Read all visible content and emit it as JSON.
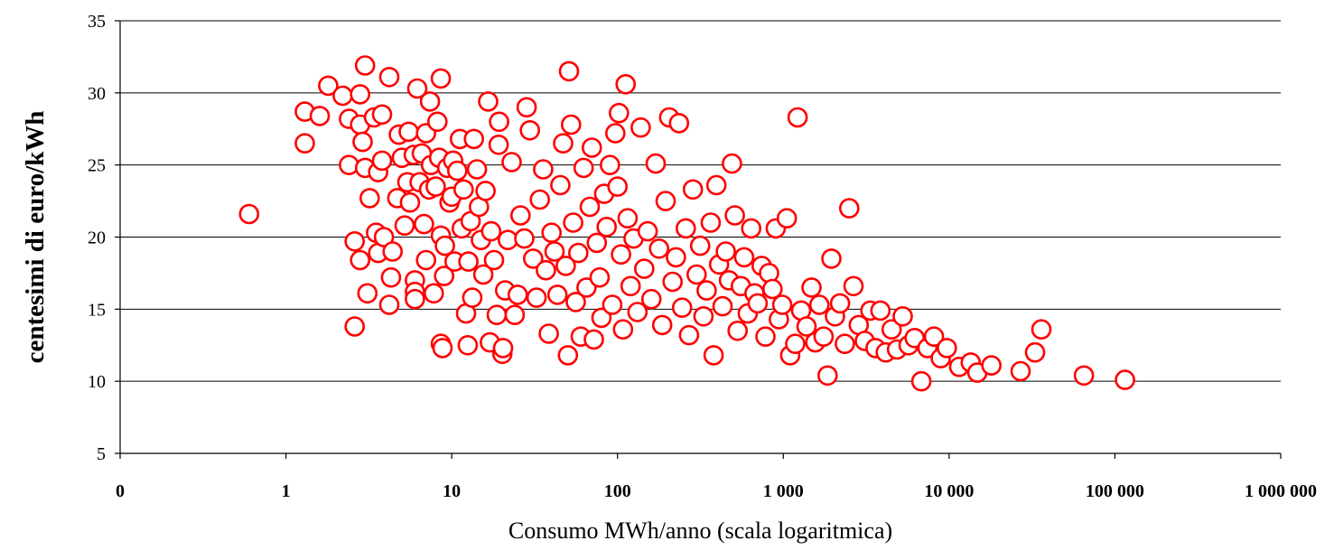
{
  "chart_data": {
    "type": "scatter",
    "title": "",
    "xlabel": "Consumo MWh/anno (scala logaritmica)",
    "ylabel": "centesimi di euro/kWh",
    "x_scale": "log",
    "xlim": [
      0.1,
      1000000
    ],
    "ylim": [
      5,
      35
    ],
    "grid": "horizontal",
    "legend": "none",
    "x_tick_labels": [
      "0",
      "1",
      "10",
      "100",
      "1 000",
      "10 000",
      "100 000",
      "1 000 000"
    ],
    "y_tick_labels": [
      "5",
      "10",
      "15",
      "20",
      "25",
      "30",
      "35"
    ],
    "y_ticks": [
      5,
      10,
      15,
      20,
      25,
      30,
      35
    ],
    "marker_color": "#ff0000",
    "series": [
      {
        "points": [
          [
            0.6,
            21.6
          ],
          [
            1.3,
            28.7
          ],
          [
            1.3,
            26.5
          ],
          [
            1.6,
            28.4
          ],
          [
            1.8,
            30.5
          ],
          [
            2.2,
            29.8
          ],
          [
            2.4,
            28.2
          ],
          [
            2.4,
            25.0
          ],
          [
            2.6,
            19.7
          ],
          [
            2.6,
            13.8
          ],
          [
            2.8,
            29.9
          ],
          [
            2.8,
            27.8
          ],
          [
            2.8,
            18.4
          ],
          [
            2.9,
            26.6
          ],
          [
            3.0,
            31.9
          ],
          [
            3.0,
            24.8
          ],
          [
            3.1,
            16.1
          ],
          [
            3.2,
            22.7
          ],
          [
            3.4,
            28.3
          ],
          [
            3.5,
            20.3
          ],
          [
            3.6,
            24.5
          ],
          [
            3.6,
            18.9
          ],
          [
            3.8,
            28.5
          ],
          [
            3.8,
            25.3
          ],
          [
            3.9,
            20.0
          ],
          [
            4.2,
            31.1
          ],
          [
            4.2,
            15.3
          ],
          [
            4.3,
            17.2
          ],
          [
            4.4,
            19.0
          ],
          [
            4.7,
            22.7
          ],
          [
            4.8,
            27.1
          ],
          [
            5.0,
            25.5
          ],
          [
            5.2,
            20.8
          ],
          [
            5.4,
            23.8
          ],
          [
            5.5,
            27.3
          ],
          [
            5.6,
            22.4
          ],
          [
            5.9,
            25.7
          ],
          [
            6.0,
            17.0
          ],
          [
            6.0,
            16.2
          ],
          [
            6.0,
            15.7
          ],
          [
            6.2,
            30.3
          ],
          [
            6.4,
            23.8
          ],
          [
            6.6,
            25.8
          ],
          [
            6.8,
            20.9
          ],
          [
            7.0,
            27.2
          ],
          [
            7.0,
            18.4
          ],
          [
            7.3,
            23.3
          ],
          [
            7.4,
            29.4
          ],
          [
            7.5,
            25.0
          ],
          [
            7.8,
            16.1
          ],
          [
            8.0,
            23.5
          ],
          [
            8.2,
            28.0
          ],
          [
            8.4,
            25.5
          ],
          [
            8.6,
            31.0
          ],
          [
            8.6,
            20.1
          ],
          [
            8.6,
            12.6
          ],
          [
            8.8,
            12.3
          ],
          [
            9.0,
            17.3
          ],
          [
            9.1,
            19.4
          ],
          [
            9.4,
            24.8
          ],
          [
            9.7,
            22.4
          ],
          [
            10.0,
            22.8
          ],
          [
            10.2,
            25.3
          ],
          [
            10.4,
            18.3
          ],
          [
            10.8,
            24.6
          ],
          [
            11.2,
            26.8
          ],
          [
            11.5,
            20.6
          ],
          [
            11.8,
            23.3
          ],
          [
            12.2,
            14.7
          ],
          [
            12.5,
            12.5
          ],
          [
            12.6,
            18.3
          ],
          [
            13.0,
            21.1
          ],
          [
            13.3,
            15.8
          ],
          [
            13.6,
            26.8
          ],
          [
            14.2,
            24.7
          ],
          [
            14.6,
            22.1
          ],
          [
            15.0,
            19.8
          ],
          [
            15.5,
            17.4
          ],
          [
            16.0,
            23.2
          ],
          [
            16.6,
            29.4
          ],
          [
            17.0,
            12.7
          ],
          [
            17.3,
            20.4
          ],
          [
            18.0,
            18.4
          ],
          [
            18.7,
            14.6
          ],
          [
            19.2,
            26.4
          ],
          [
            19.3,
            28.0
          ],
          [
            20.2,
            11.9
          ],
          [
            20.4,
            12.3
          ],
          [
            21.0,
            16.3
          ],
          [
            21.8,
            19.8
          ],
          [
            23.0,
            25.2
          ],
          [
            24.0,
            14.6
          ],
          [
            25.0,
            16.0
          ],
          [
            26.0,
            21.5
          ],
          [
            27.4,
            19.9
          ],
          [
            28.3,
            29.0
          ],
          [
            29.6,
            27.4
          ],
          [
            31.0,
            18.5
          ],
          [
            32.5,
            15.8
          ],
          [
            34.0,
            22.6
          ],
          [
            35.6,
            24.7
          ],
          [
            37.0,
            17.7
          ],
          [
            38.5,
            13.3
          ],
          [
            40.0,
            20.3
          ],
          [
            41.7,
            19.0
          ],
          [
            43.4,
            16.0
          ],
          [
            45.2,
            23.6
          ],
          [
            47.0,
            26.5
          ],
          [
            48.7,
            18.0
          ],
          [
            50.2,
            11.8
          ],
          [
            51.0,
            31.5
          ],
          [
            52.5,
            27.8
          ],
          [
            54.0,
            21.0
          ],
          [
            56.0,
            15.5
          ],
          [
            58.0,
            18.9
          ],
          [
            60.0,
            13.1
          ],
          [
            62.5,
            24.8
          ],
          [
            65.0,
            16.5
          ],
          [
            68.0,
            22.1
          ],
          [
            70.0,
            26.2
          ],
          [
            72.0,
            12.9
          ],
          [
            75.0,
            19.6
          ],
          [
            78.0,
            17.2
          ],
          [
            80.0,
            14.4
          ],
          [
            83.0,
            23.0
          ],
          [
            86.0,
            20.7
          ],
          [
            90.0,
            25.0
          ],
          [
            93.0,
            15.3
          ],
          [
            97.0,
            27.2
          ],
          [
            100.0,
            23.5
          ],
          [
            102.0,
            28.6
          ],
          [
            105.0,
            18.8
          ],
          [
            108.0,
            13.6
          ],
          [
            112.0,
            30.6
          ],
          [
            115.0,
            21.3
          ],
          [
            120.0,
            16.6
          ],
          [
            125.0,
            19.9
          ],
          [
            132.0,
            14.8
          ],
          [
            138.0,
            27.6
          ],
          [
            145.0,
            17.8
          ],
          [
            152.0,
            20.4
          ],
          [
            160.0,
            15.7
          ],
          [
            170.0,
            25.1
          ],
          [
            178.0,
            19.2
          ],
          [
            186.0,
            13.9
          ],
          [
            195.0,
            22.5
          ],
          [
            205.0,
            28.3
          ],
          [
            215.0,
            16.9
          ],
          [
            225.0,
            18.6
          ],
          [
            235.0,
            27.9
          ],
          [
            245.0,
            15.1
          ],
          [
            258.0,
            20.6
          ],
          [
            270.0,
            13.2
          ],
          [
            285.0,
            23.3
          ],
          [
            300.0,
            17.4
          ],
          [
            315.0,
            19.4
          ],
          [
            330.0,
            14.5
          ],
          [
            345.0,
            16.3
          ],
          [
            365.0,
            21.0
          ],
          [
            380.0,
            11.8
          ],
          [
            395.0,
            23.6
          ],
          [
            410.0,
            18.1
          ],
          [
            430.0,
            15.2
          ],
          [
            450.0,
            19.0
          ],
          [
            470.0,
            17.0
          ],
          [
            490.0,
            25.1
          ],
          [
            510.0,
            21.5
          ],
          [
            530.0,
            13.5
          ],
          [
            555.0,
            16.6
          ],
          [
            580.0,
            18.6
          ],
          [
            610.0,
            14.7
          ],
          [
            640.0,
            20.6
          ],
          [
            670.0,
            16.1
          ],
          [
            700.0,
            15.4
          ],
          [
            740.0,
            18.0
          ],
          [
            780.0,
            13.1
          ],
          [
            820.0,
            17.5
          ],
          [
            860.0,
            16.4
          ],
          [
            900.0,
            20.6
          ],
          [
            940.0,
            14.3
          ],
          [
            985.0,
            15.3
          ],
          [
            1050.0,
            21.3
          ],
          [
            1100.0,
            11.8
          ],
          [
            1180.0,
            12.6
          ],
          [
            1220.0,
            28.3
          ],
          [
            1280.0,
            14.9
          ],
          [
            1380.0,
            13.8
          ],
          [
            1480.0,
            16.5
          ],
          [
            1560.0,
            12.7
          ],
          [
            1650.0,
            15.3
          ],
          [
            1750.0,
            13.1
          ],
          [
            1850.0,
            10.4
          ],
          [
            1950.0,
            18.5
          ],
          [
            2050.0,
            14.5
          ],
          [
            2200.0,
            15.4
          ],
          [
            2350.0,
            12.6
          ],
          [
            2500.0,
            22.0
          ],
          [
            2650.0,
            16.6
          ],
          [
            2850.0,
            13.9
          ],
          [
            3100.0,
            12.8
          ],
          [
            3350.0,
            14.9
          ],
          [
            3600.0,
            12.3
          ],
          [
            3850.0,
            14.9
          ],
          [
            4150.0,
            12.0
          ],
          [
            4500.0,
            13.6
          ],
          [
            4850.0,
            12.2
          ],
          [
            5250.0,
            14.5
          ],
          [
            5700.0,
            12.5
          ],
          [
            6200.0,
            13.0
          ],
          [
            6800.0,
            10.0
          ],
          [
            7400.0,
            12.3
          ],
          [
            8100.0,
            13.1
          ],
          [
            8900.0,
            11.6
          ],
          [
            9700.0,
            12.3
          ],
          [
            11500.0,
            11.0
          ],
          [
            13500.0,
            11.3
          ],
          [
            14800.0,
            10.6
          ],
          [
            18000.0,
            11.1
          ],
          [
            27000.0,
            10.7
          ],
          [
            33000.0,
            12.0
          ],
          [
            36000.0,
            13.6
          ],
          [
            65000.0,
            10.4
          ],
          [
            115000.0,
            10.1
          ]
        ]
      }
    ]
  }
}
